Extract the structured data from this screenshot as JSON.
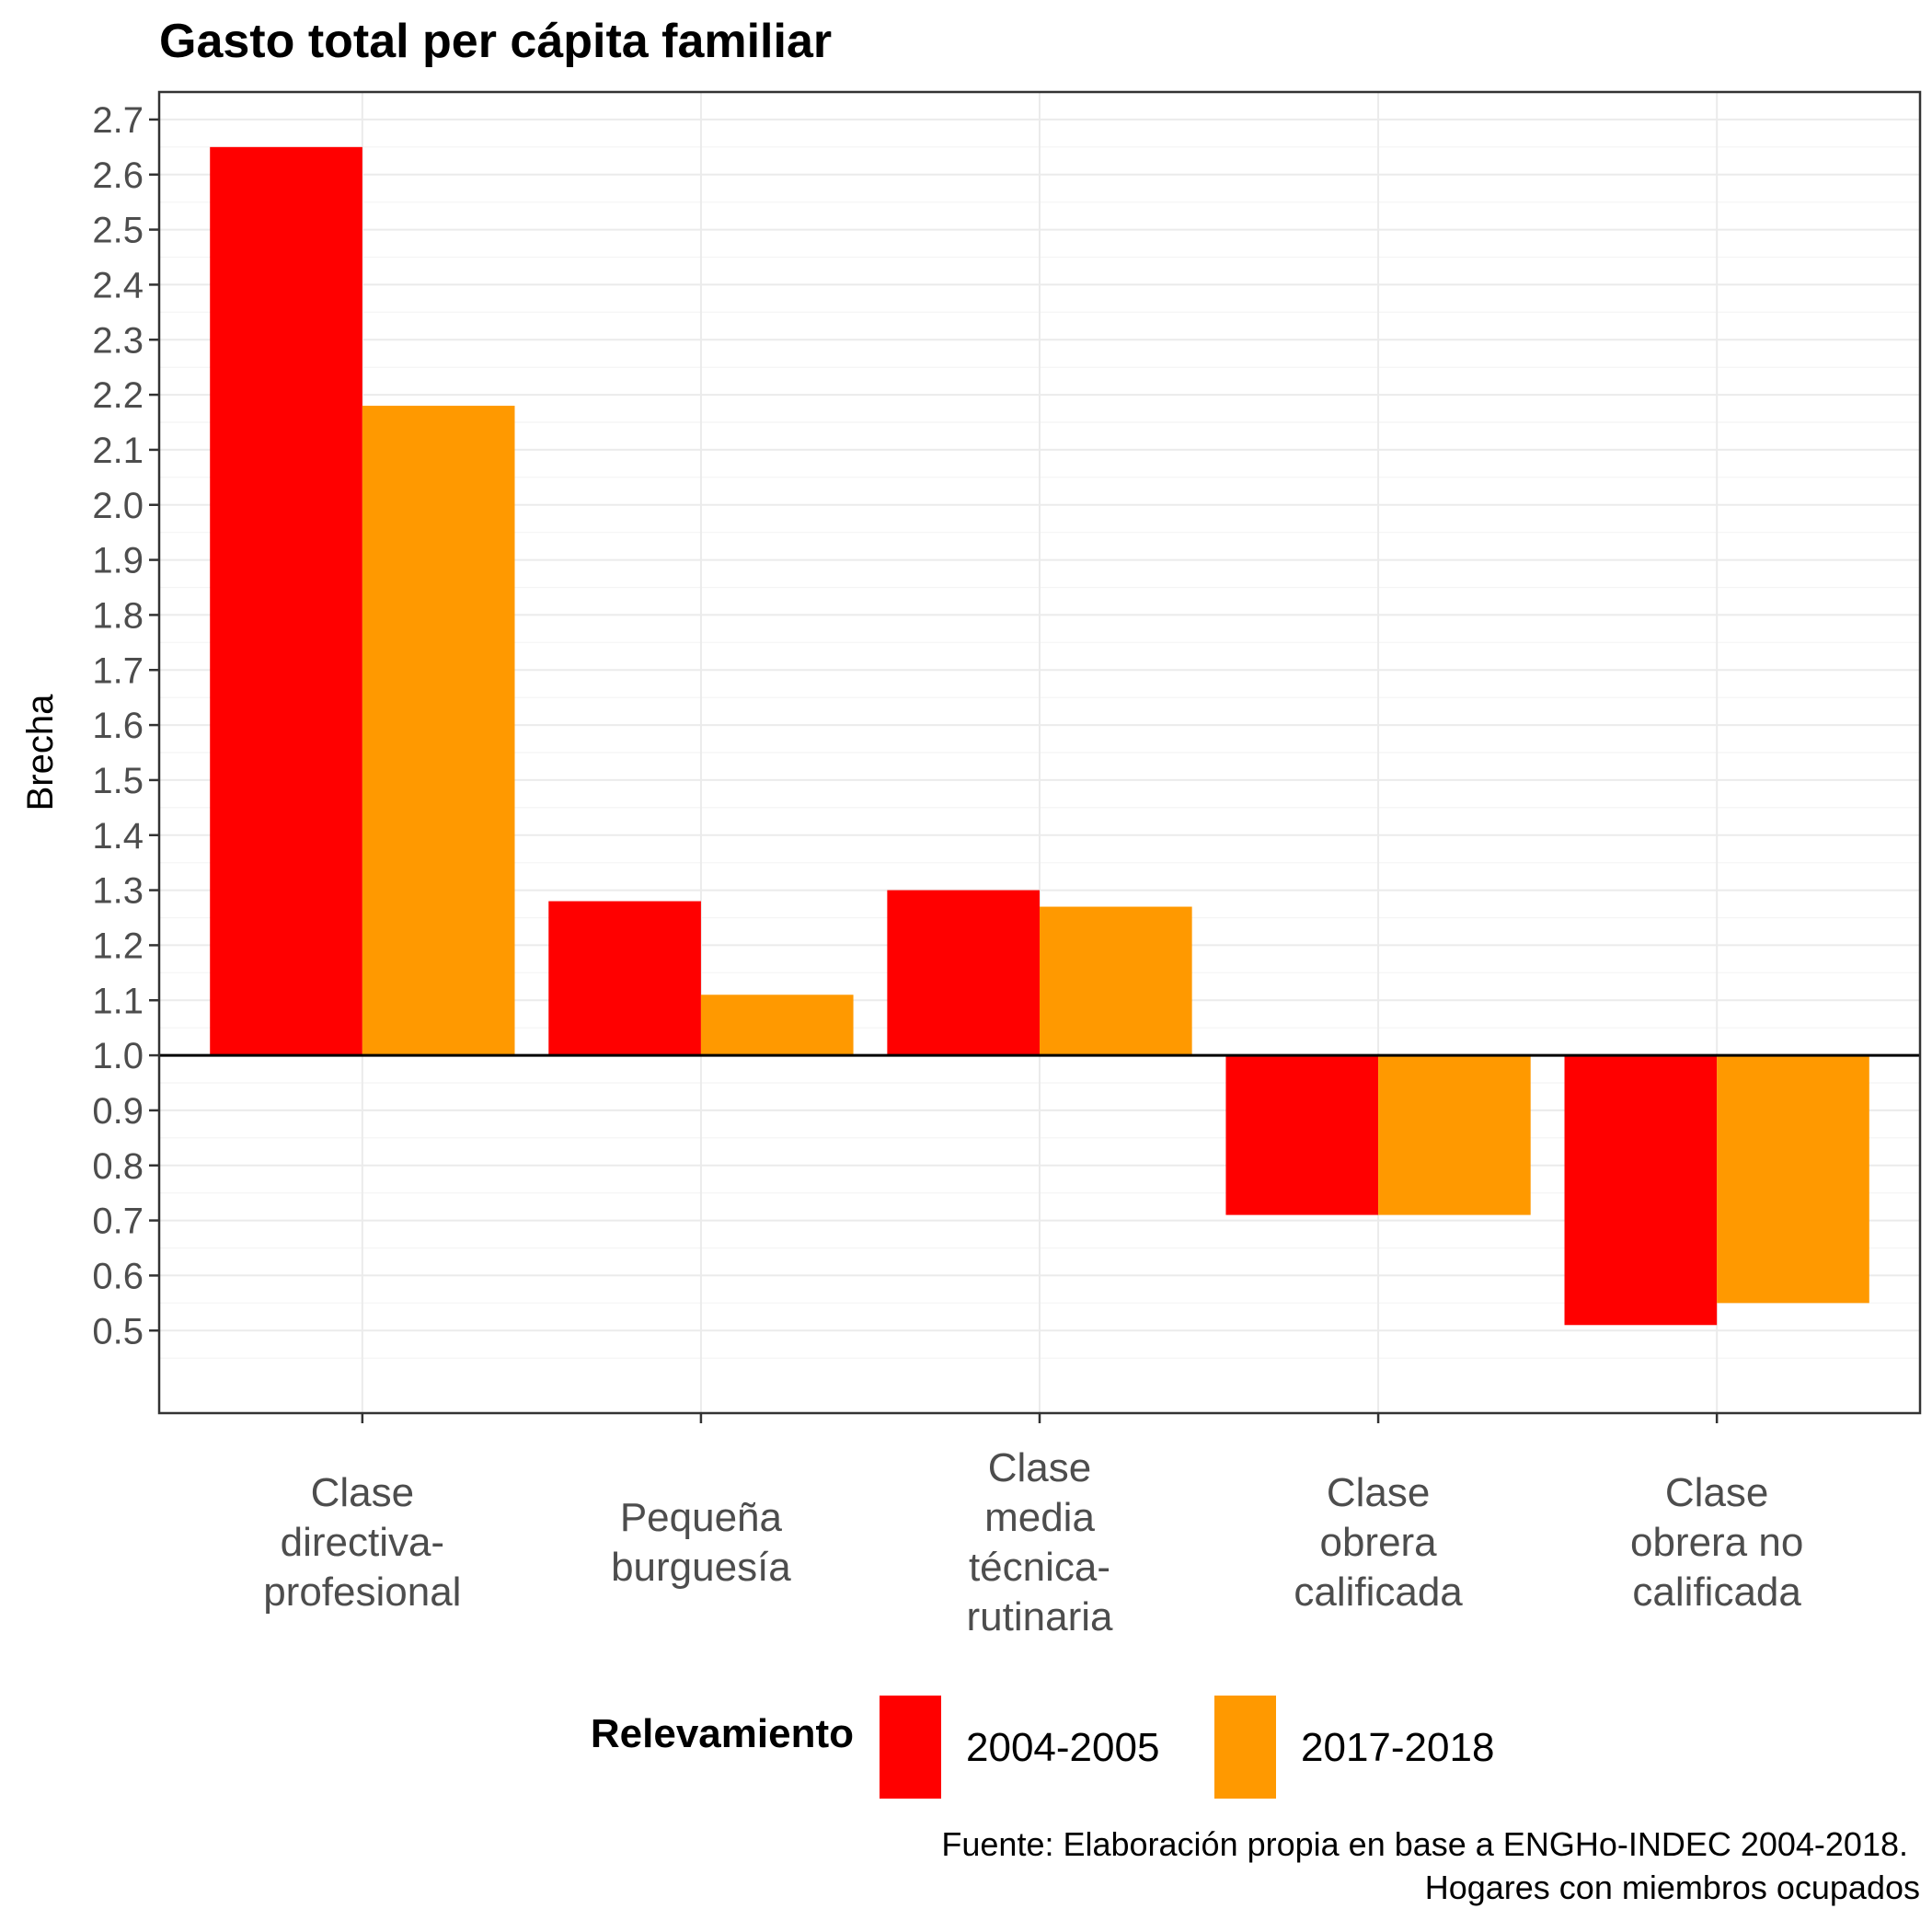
{
  "chart_data": {
    "type": "bar",
    "title": "Gasto total per cápita familiar",
    "xlabel": "",
    "ylabel": "Brecha",
    "ylim": [
      0.35,
      2.75
    ],
    "baseline": 1.0,
    "grid": true,
    "legend_position": "bottom",
    "y_ticks": [
      "0.5",
      "0.6",
      "0.7",
      "0.8",
      "0.9",
      "1.0",
      "1.1",
      "1.2",
      "1.3",
      "1.4",
      "1.5",
      "1.6",
      "1.7",
      "1.8",
      "1.9",
      "2.0",
      "2.1",
      "2.2",
      "2.3",
      "2.4",
      "2.5",
      "2.6",
      "2.7"
    ],
    "categories": [
      [
        "Clase",
        "directiva-",
        "profesional"
      ],
      [
        "Pequeña",
        "burguesía"
      ],
      [
        "Clase",
        "media",
        "técnica-",
        "rutinaria"
      ],
      [
        "Clase",
        "obrera",
        "calificada"
      ],
      [
        "Clase",
        "obrera no",
        "calificada"
      ]
    ],
    "legend_title": "Relevamiento",
    "series": [
      {
        "name": "2004-2005",
        "color": "#FF0000",
        "values": [
          2.65,
          1.28,
          1.3,
          0.71,
          0.51
        ]
      },
      {
        "name": "2017-2018",
        "color": "#FF9900",
        "values": [
          2.18,
          1.11,
          1.27,
          0.71,
          0.55
        ]
      }
    ],
    "caption": [
      "Fuente: Elaboración propia en base a ENGHo-INDEC 2004-2018.",
      "Hogares con miembros ocupados"
    ]
  }
}
